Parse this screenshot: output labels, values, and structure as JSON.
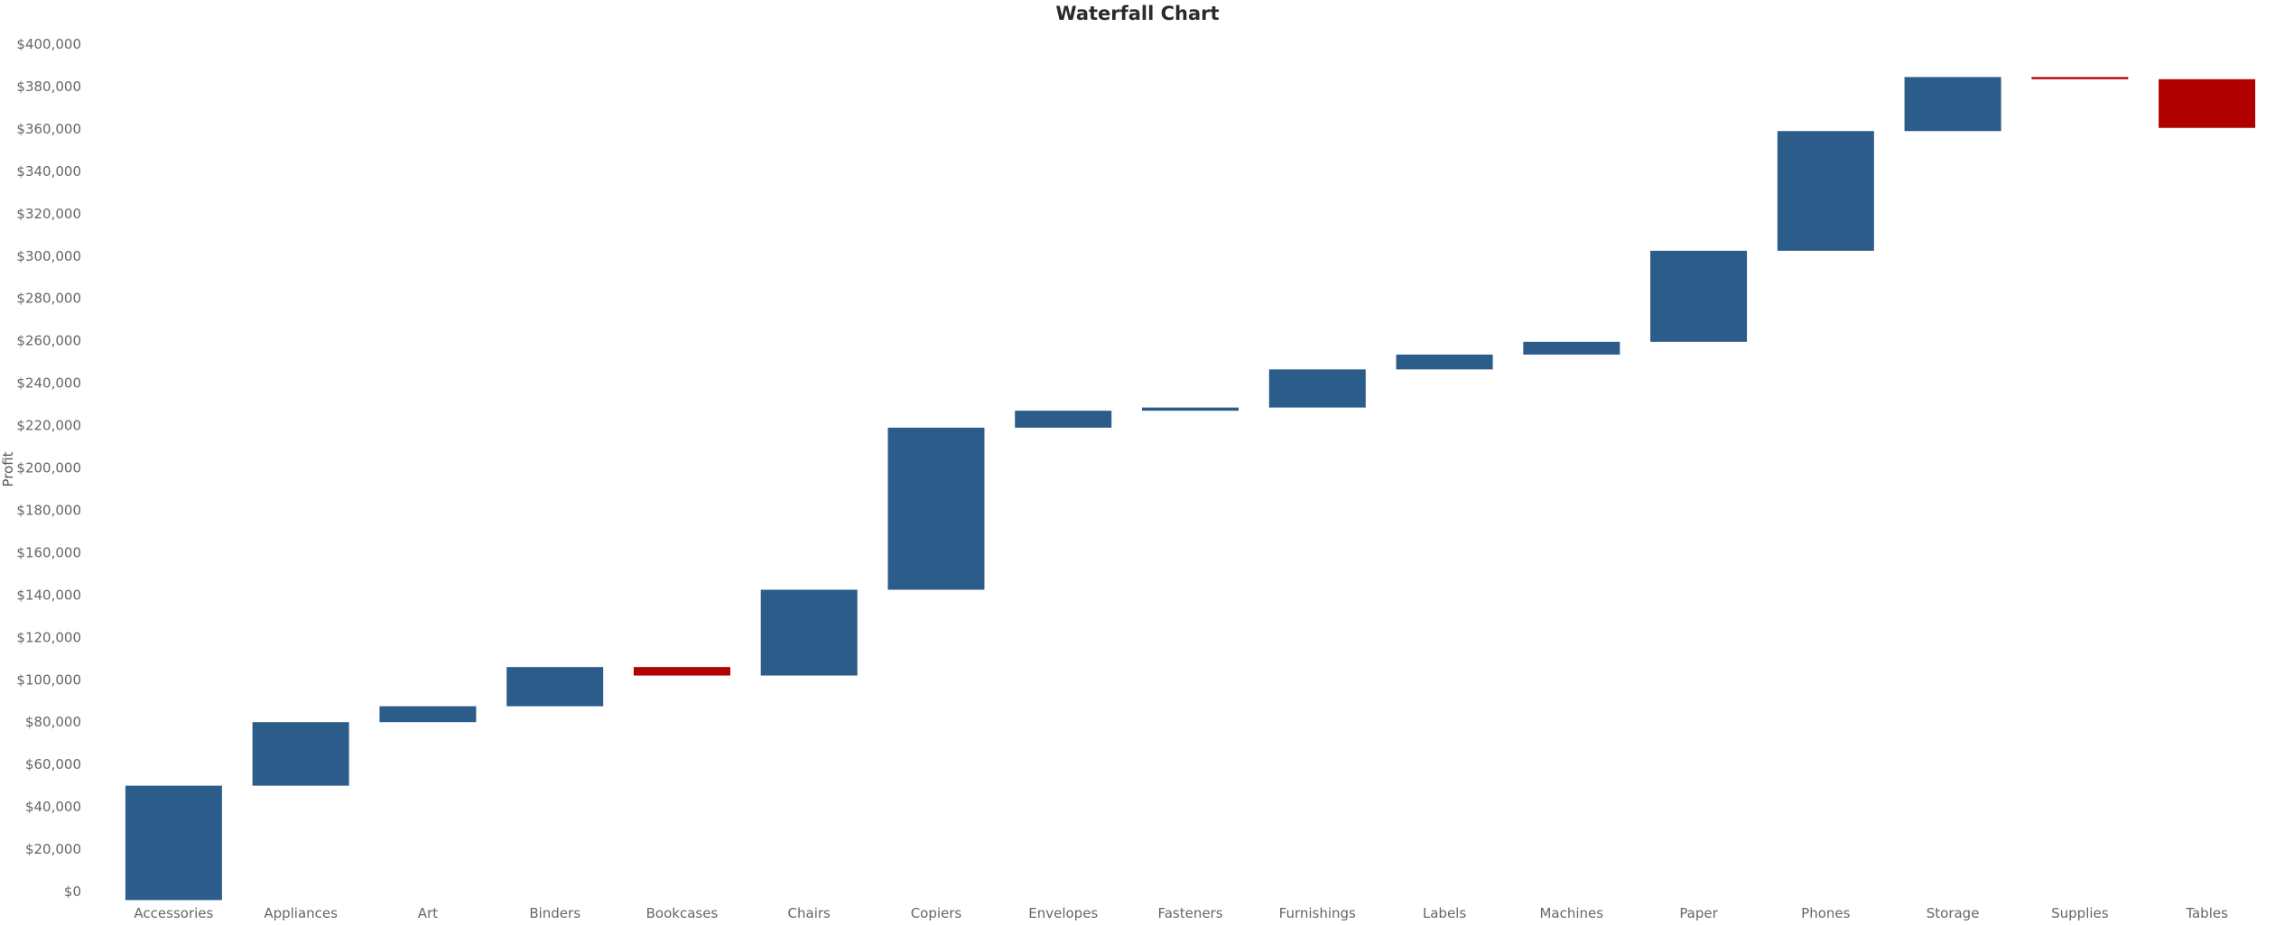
{
  "chart_data": {
    "type": "bar",
    "subtype": "waterfall",
    "title": "Waterfall Chart",
    "xlabel": "",
    "ylabel": "Profit",
    "ylim": [
      0,
      400000
    ],
    "yticks": [
      0,
      20000,
      40000,
      60000,
      80000,
      100000,
      120000,
      140000,
      160000,
      180000,
      200000,
      220000,
      240000,
      260000,
      280000,
      300000,
      320000,
      340000,
      360000,
      380000,
      400000
    ],
    "ytick_labels": [
      "$0",
      "$20,000",
      "$40,000",
      "$60,000",
      "$80,000",
      "$100,000",
      "$120,000",
      "$140,000",
      "$160,000",
      "$180,000",
      "$200,000",
      "$220,000",
      "$240,000",
      "$260,000",
      "$280,000",
      "$300,000",
      "$320,000",
      "$340,000",
      "$360,000",
      "$380,000",
      "$400,000"
    ],
    "categories": [
      "Accessories",
      "Appliances",
      "Art",
      "Binders",
      "Bookcases",
      "Chairs",
      "Copiers",
      "Envelopes",
      "Fasteners",
      "Furnishings",
      "Labels",
      "Machines",
      "Paper",
      "Phones",
      "Storage",
      "Supplies",
      "Tables"
    ],
    "bars": [
      {
        "start": -4000,
        "end": 50000
      },
      {
        "start": 50000,
        "end": 80000
      },
      {
        "start": 80000,
        "end": 87500
      },
      {
        "start": 87500,
        "end": 106000
      },
      {
        "start": 106000,
        "end": 102000
      },
      {
        "start": 102000,
        "end": 142500
      },
      {
        "start": 142500,
        "end": 219000
      },
      {
        "start": 219000,
        "end": 227000
      },
      {
        "start": 227000,
        "end": 228500
      },
      {
        "start": 228500,
        "end": 246500
      },
      {
        "start": 246500,
        "end": 253500
      },
      {
        "start": 253500,
        "end": 259500
      },
      {
        "start": 259500,
        "end": 302500
      },
      {
        "start": 302500,
        "end": 359000
      },
      {
        "start": 359000,
        "end": 384500
      },
      {
        "start": 384500,
        "end": 383500
      },
      {
        "start": 383500,
        "end": 360500
      }
    ],
    "colors": {
      "increase": "#2b5c8a",
      "decrease": "#b00000"
    },
    "grid": false,
    "legend": "none"
  }
}
